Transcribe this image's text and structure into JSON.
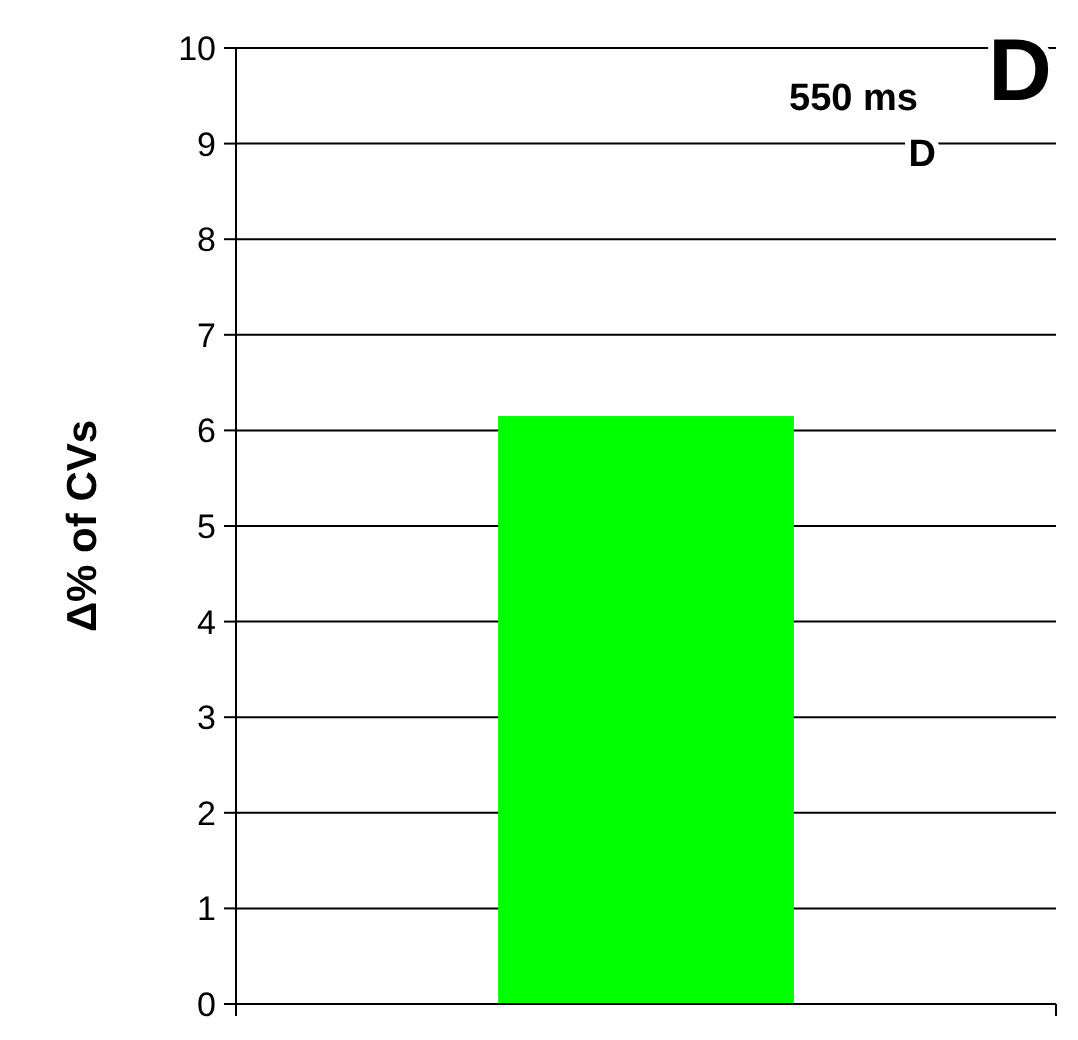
{
  "chart_data": {
    "type": "bar",
    "ylabel": "Δ% of CVs",
    "categories": [
      null
    ],
    "values": [
      6.15
    ],
    "color": "#00ff00",
    "ylim": [
      0,
      10
    ],
    "yticks": [
      0,
      1,
      2,
      3,
      4,
      5,
      6,
      7,
      8,
      9,
      10
    ],
    "grid": "y",
    "annotations": [
      "550 ms",
      "D",
      "D"
    ]
  }
}
